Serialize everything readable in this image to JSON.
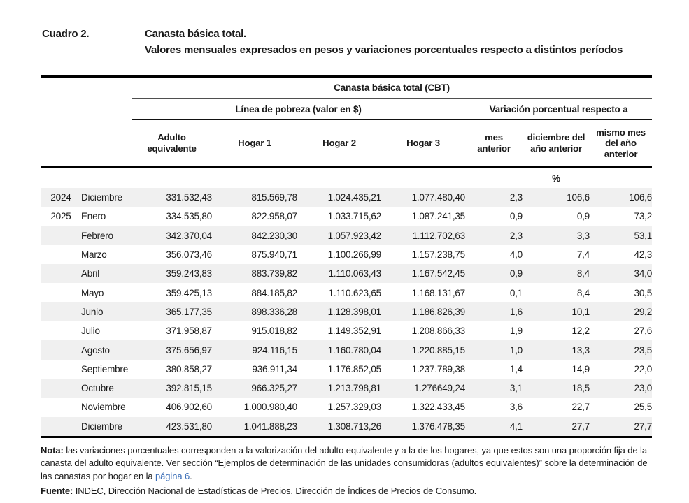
{
  "page": {
    "label": "Cuadro 2.",
    "title_line1": "Canasta básica total.",
    "title_line2": "Valores mensuales expresados en pesos y variaciones porcentuales respecto a distintos períodos"
  },
  "table": {
    "group_title": "Canasta básica total (CBT)",
    "group_left": "Línea de pobreza (valor en $)",
    "group_right": "Variación porcentual respecto a",
    "unit_label": "%",
    "columns": [
      {
        "id": "adulto-equivalente",
        "lines": [
          "Adulto",
          "equivalente"
        ]
      },
      {
        "id": "hogar-1",
        "lines": [
          "Hogar 1"
        ]
      },
      {
        "id": "hogar-2",
        "lines": [
          "Hogar 2"
        ]
      },
      {
        "id": "hogar-3",
        "lines": [
          "Hogar 3"
        ]
      },
      {
        "id": "mes-anterior",
        "lines": [
          "mes",
          "anterior"
        ]
      },
      {
        "id": "diciembre-ano-anterior",
        "lines": [
          "diciembre del",
          "año anterior"
        ]
      },
      {
        "id": "mismo-mes-ano-anterior",
        "lines": [
          "mismo mes",
          "del año",
          "anterior"
        ]
      }
    ],
    "rows": [
      {
        "year": "2024",
        "month": "Diciembre",
        "values": [
          "331.532,43",
          "815.569,78",
          "1.024.435,21",
          "1.077.480,40",
          "2,3",
          "106,6",
          "106,6"
        ]
      },
      {
        "year": "2025",
        "month": "Enero",
        "values": [
          "334.535,80",
          "822.958,07",
          "1.033.715,62",
          "1.087.241,35",
          "0,9",
          "0,9",
          "73,2"
        ]
      },
      {
        "year": "",
        "month": "Febrero",
        "values": [
          "342.370,04",
          "842.230,30",
          "1.057.923,42",
          "1.112.702,63",
          "2,3",
          "3,3",
          "53,1"
        ]
      },
      {
        "year": "",
        "month": "Marzo",
        "values": [
          "356.073,46",
          "875.940,71",
          "1.100.266,99",
          "1.157.238,75",
          "4,0",
          "7,4",
          "42,3"
        ]
      },
      {
        "year": "",
        "month": "Abril",
        "values": [
          "359.243,83",
          "883.739,82",
          "1.110.063,43",
          "1.167.542,45",
          "0,9",
          "8,4",
          "34,0"
        ]
      },
      {
        "year": "",
        "month": "Mayo",
        "values": [
          "359.425,13",
          "884.185,82",
          "1.110.623,65",
          "1.168.131,67",
          "0,1",
          "8,4",
          "30,5"
        ]
      },
      {
        "year": "",
        "month": "Junio",
        "values": [
          "365.177,35",
          "898.336,28",
          "1.128.398,01",
          "1.186.826,39",
          "1,6",
          "10,1",
          "29,2"
        ]
      },
      {
        "year": "",
        "month": "Julio",
        "values": [
          "371.958,87",
          "915.018,82",
          "1.149.352,91",
          "1.208.866,33",
          "1,9",
          "12,2",
          "27,6"
        ]
      },
      {
        "year": "",
        "month": "Agosto",
        "values": [
          "375.656,97",
          "924.116,15",
          "1.160.780,04",
          "1.220.885,15",
          "1,0",
          "13,3",
          "23,5"
        ]
      },
      {
        "year": "",
        "month": "Septiembre",
        "values": [
          "380.858,27",
          "936.911,34",
          "1.176.852,05",
          "1.237.789,38",
          "1,4",
          "14,9",
          "22,0"
        ]
      },
      {
        "year": "",
        "month": "Octubre",
        "values": [
          "392.815,15",
          "966.325,27",
          "1.213.798,81",
          "1.276649,24",
          "3,1",
          "18,5",
          "23,0"
        ]
      },
      {
        "year": "",
        "month": "Noviembre",
        "values": [
          "406.902,60",
          "1.000.980,40",
          "1.257.329,03",
          "1.322.433,45",
          "3,6",
          "22,7",
          "25,5"
        ]
      },
      {
        "year": "",
        "month": "Diciembre",
        "values": [
          "423.531,80",
          "1.041.888,23",
          "1.308.713,26",
          "1.376.478,35",
          "4,1",
          "27,7",
          "27,7"
        ]
      }
    ]
  },
  "footer": {
    "note_label": "Nota:",
    "note_text_1": " las variaciones porcentuales corresponden a la valorización del adulto equivalente y a la de los hogares, ya que estos son una proporción fija de la canasta del adulto equivalente. Ver sección “Ejemplos de determinación de las unidades consumidoras (adultos equivalentes)” sobre la determinación de las canastas por hogar en la ",
    "note_link": "página 6",
    "note_text_2": ".",
    "source_label": "Fuente:",
    "source_text": " INDEC, Dirección Nacional de Estadísticas de Precios. Dirección de Índices de Precios de Consumo."
  },
  "colors": {
    "link_blue": "#3a6db6",
    "zebra_gray": "#f0f0f0",
    "rule_black": "#000000",
    "rule_gray": "#4f4f4f"
  }
}
